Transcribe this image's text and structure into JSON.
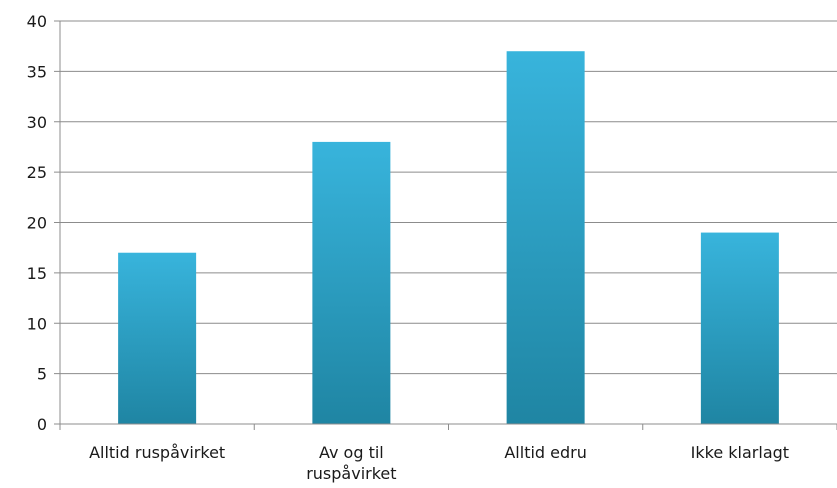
{
  "chart_data": {
    "type": "bar",
    "title": "",
    "xlabel": "",
    "ylabel": "",
    "ylim": [
      0,
      40
    ],
    "yticks": [
      0,
      5,
      10,
      15,
      20,
      25,
      30,
      35,
      40
    ],
    "grid": true,
    "legend": "none",
    "categories": [
      [
        "Alltid ruspåvirket"
      ],
      [
        "Av og til",
        "ruspåvirket"
      ],
      [
        "Alltid edru"
      ],
      [
        "Ikke klarlagt"
      ]
    ],
    "values": [
      17,
      28,
      37,
      19
    ],
    "colors": {
      "bar_top": "#38b4dc",
      "bar_bottom": "#1f85a3",
      "grid": "#8c8c8c",
      "axis": "#8c8c8c",
      "text": "#1a1a1a"
    }
  }
}
